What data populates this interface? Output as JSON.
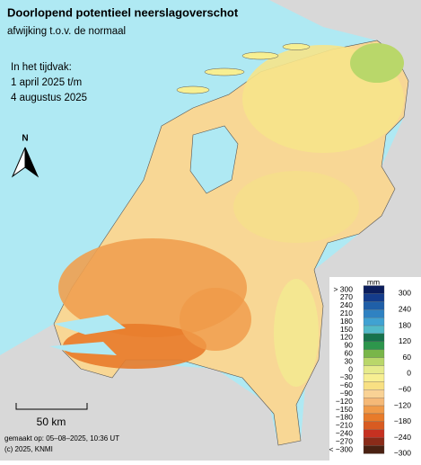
{
  "header": {
    "title": "Doorlopend potentieel neerslagoverschot",
    "subtitle": "afwijking t.o.v. de normaal"
  },
  "period": {
    "label": "In het tijdvak:",
    "start": "1 april 2025 t/m",
    "end": "4 augustus 2025"
  },
  "north": "N",
  "scale_bar": "50 km",
  "footer": {
    "made": "gemaakt op: 05–08–2025, 10:36 UT",
    "copyright": "(c) 2025, KNMI"
  },
  "legend": {
    "unit": "mm",
    "left_labels": [
      "> 300",
      "270",
      "240",
      "210",
      "180",
      "150",
      "120",
      "90",
      "60",
      "30",
      "0",
      "−30",
      "−60",
      "−90",
      "−120",
      "−150",
      "−180",
      "−210",
      "−240",
      "−270",
      "< −300"
    ],
    "colors": [
      "#0b1d5c",
      "#143c8c",
      "#1f5fa8",
      "#2f82c2",
      "#40a2d2",
      "#52bac8",
      "#17734c",
      "#2d964c",
      "#79b649",
      "#b9d76a",
      "#e6eb8c",
      "#f7ef92",
      "#f8e083",
      "#f9d295",
      "#f5b977",
      "#f09a48",
      "#e87b2a",
      "#d85b21",
      "#c63121",
      "#8a2b19",
      "#4a2112"
    ],
    "right_labels": [
      "300",
      "240",
      "180",
      "120",
      "60",
      "0",
      "−60",
      "−120",
      "−180",
      "−240",
      "−300"
    ]
  }
}
